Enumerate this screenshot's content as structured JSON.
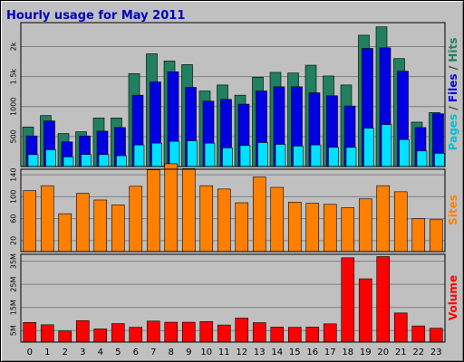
{
  "chart_data": {
    "type": "bar",
    "title": "Hourly usage for May 2011",
    "categories": [
      "0",
      "1",
      "2",
      "3",
      "4",
      "5",
      "6",
      "7",
      "8",
      "9",
      "10",
      "11",
      "12",
      "13",
      "14",
      "15",
      "16",
      "17",
      "18",
      "19",
      "20",
      "21",
      "22",
      "23"
    ],
    "grid": true,
    "panels": [
      {
        "name": "top",
        "ylim": [
          0,
          2400
        ],
        "yticks": [
          500,
          1000,
          1500,
          2000
        ],
        "ytick_labels": [
          "500",
          "1000",
          "1.5k",
          "2k"
        ],
        "axis_label_parts": [
          {
            "text": "Pages",
            "color": "#00c0d0"
          },
          {
            "text": " / ",
            "color": "#404040"
          },
          {
            "text": "Files",
            "color": "#0000e0"
          },
          {
            "text": " / ",
            "color": "#404040"
          },
          {
            "text": "Hits",
            "color": "#208060"
          }
        ],
        "series": [
          {
            "name": "Hits",
            "color": "#208060",
            "values": [
              660,
              850,
              550,
              580,
              810,
              810,
              1550,
              1880,
              1760,
              1700,
              1260,
              1360,
              1190,
              1490,
              1570,
              1560,
              1690,
              1510,
              1360,
              2190,
              2330,
              1800,
              740,
              900
            ]
          },
          {
            "name": "Files",
            "color": "#0000e0",
            "values": [
              510,
              760,
              410,
              510,
              590,
              650,
              1190,
              1410,
              1580,
              1320,
              1090,
              1120,
              1040,
              1260,
              1330,
              1330,
              1230,
              1180,
              1010,
              1970,
              1980,
              1590,
              650,
              880
            ]
          },
          {
            "name": "Pages",
            "color": "#00e0ff",
            "values": [
              200,
              280,
              160,
              200,
              200,
              180,
              360,
              390,
              420,
              430,
              390,
              310,
              350,
              400,
              370,
              340,
              360,
              320,
              320,
              640,
              700,
              450,
              260,
              220
            ]
          }
        ]
      },
      {
        "name": "middle",
        "ylim": [
          0,
          150
        ],
        "yticks": [
          20,
          60,
          100,
          140
        ],
        "ytick_labels": [
          "20",
          "60",
          "100",
          "140"
        ],
        "axis_label_parts": [
          {
            "text": "Sites",
            "color": "#ff8000"
          }
        ],
        "series": [
          {
            "name": "Sites",
            "color": "#ff8000",
            "values": [
              111,
              120,
              69,
              106,
              94,
              85,
              119,
              149,
              160,
              151,
              120,
              114,
              89,
              136,
              117,
              90,
              88,
              86,
              80,
              96,
              120,
              109,
              60,
              58
            ]
          }
        ]
      },
      {
        "name": "bottom",
        "ylim": [
          0,
          38
        ],
        "yticks": [
          5,
          15,
          25,
          35
        ],
        "ytick_labels": [
          "5M",
          "15M",
          "25M",
          "35M"
        ],
        "axis_label_parts": [
          {
            "text": "Volume",
            "color": "#ff0000"
          }
        ],
        "series": [
          {
            "name": "Volume",
            "color": "#ff0000",
            "values": [
              8.5,
              7.5,
              4.8,
              9.3,
              5.7,
              8.0,
              6.4,
              9.1,
              8.6,
              8.6,
              8.9,
              7.4,
              10.4,
              8.4,
              6.5,
              6.4,
              6.5,
              7.9,
              36.5,
              27.4,
              37.0,
              12.6,
              7.0,
              6.0
            ]
          }
        ]
      }
    ]
  }
}
